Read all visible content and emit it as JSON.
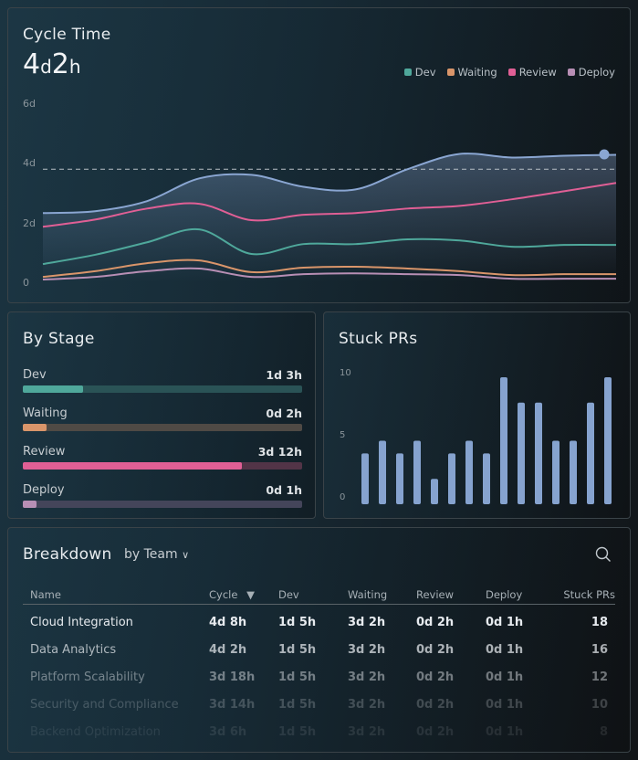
{
  "cycle_time": {
    "title": "Cycle Time",
    "value_days": "4",
    "unit_d": "d",
    "value_hours": "2",
    "unit_h": "h",
    "legend": [
      {
        "name": "Dev",
        "color": "#4fa89b"
      },
      {
        "name": "Waiting",
        "color": "#d9956a"
      },
      {
        "name": "Review",
        "color": "#e05f95"
      },
      {
        "name": "Deploy",
        "color": "#b88fb5"
      }
    ],
    "y_ticks": [
      "6d",
      "4d",
      "2d",
      "0"
    ]
  },
  "by_stage": {
    "title": "By Stage",
    "items": [
      {
        "name": "Dev",
        "value": "1d 3h",
        "fraction": 0.215,
        "color": "#4fa89b",
        "track": "#2a5356"
      },
      {
        "name": "Waiting",
        "value": "0d 2h",
        "fraction": 0.085,
        "color": "#d9956a",
        "track": "#4f4a45"
      },
      {
        "name": "Review",
        "value": "3d 12h",
        "fraction": 0.785,
        "color": "#e05f95",
        "track": "#523447"
      },
      {
        "name": "Deploy",
        "value": "0d 1h",
        "fraction": 0.05,
        "color": "#b88fb5",
        "track": "#44455a"
      }
    ]
  },
  "stuck_prs": {
    "title": "Stuck PRs",
    "y_ticks": [
      "10",
      "5",
      "0"
    ]
  },
  "breakdown": {
    "title": "Breakdown",
    "group_by": "by Team",
    "columns": [
      "Name",
      "Cycle",
      "Dev",
      "Waiting",
      "Review",
      "Deploy",
      "Stuck PRs"
    ],
    "rows": [
      [
        "Cloud Integration",
        "4d 8h",
        "1d 5h",
        "3d 2h",
        "0d 2h",
        "0d 1h",
        "18"
      ],
      [
        "Data Analytics",
        "4d 2h",
        "1d 5h",
        "3d 2h",
        "0d 2h",
        "0d 1h",
        "16"
      ],
      [
        "Platform Scalability",
        "3d 18h",
        "1d 5h",
        "3d 2h",
        "0d 2h",
        "0d 1h",
        "12"
      ],
      [
        "Security and Compliance",
        "3d 14h",
        "1d 5h",
        "3d 2h",
        "0d 2h",
        "0d 1h",
        "10"
      ],
      [
        "Backend Optimization",
        "3d 6h",
        "1d 5h",
        "3d 2h",
        "0d 2h",
        "0d 1h",
        "8"
      ]
    ]
  },
  "chart_data": [
    {
      "type": "line",
      "title": "Cycle Time",
      "ylim": [
        0,
        6
      ],
      "y_unit": "days",
      "y_ticks": [
        "0",
        "2d",
        "4d",
        "6d"
      ],
      "reference_line": 3.79,
      "series": [
        {
          "name": "Total",
          "color": "#8aa6d2",
          "values": [
            2.32,
            2.38,
            2.72,
            3.48,
            3.6,
            3.2,
            3.11,
            3.79,
            4.3,
            4.18,
            4.24,
            4.27
          ]
        },
        {
          "name": "Review",
          "color": "#e05f95",
          "values": [
            1.86,
            2.1,
            2.47,
            2.63,
            2.08,
            2.26,
            2.32,
            2.47,
            2.56,
            2.78,
            3.05,
            3.33
          ]
        },
        {
          "name": "Dev",
          "color": "#4fa89b",
          "values": [
            0.61,
            0.92,
            1.34,
            1.77,
            0.95,
            1.28,
            1.28,
            1.44,
            1.4,
            1.19,
            1.25,
            1.25
          ]
        },
        {
          "name": "Waiting",
          "color": "#d9956a",
          "values": [
            0.18,
            0.37,
            0.64,
            0.73,
            0.34,
            0.49,
            0.52,
            0.46,
            0.37,
            0.24,
            0.27,
            0.27
          ]
        },
        {
          "name": "Deploy",
          "color": "#b88fb5",
          "values": [
            0.09,
            0.18,
            0.37,
            0.46,
            0.18,
            0.27,
            0.3,
            0.27,
            0.24,
            0.12,
            0.12,
            0.12
          ]
        }
      ]
    },
    {
      "type": "bar",
      "title": "Stuck PRs",
      "ylim": [
        0,
        10
      ],
      "y_ticks": [
        "0",
        "5",
        "10"
      ],
      "color": "#86a3cf",
      "values": [
        4,
        5,
        4,
        5,
        2,
        4,
        5,
        4,
        10,
        8,
        8,
        5,
        5,
        8,
        10
      ]
    }
  ]
}
